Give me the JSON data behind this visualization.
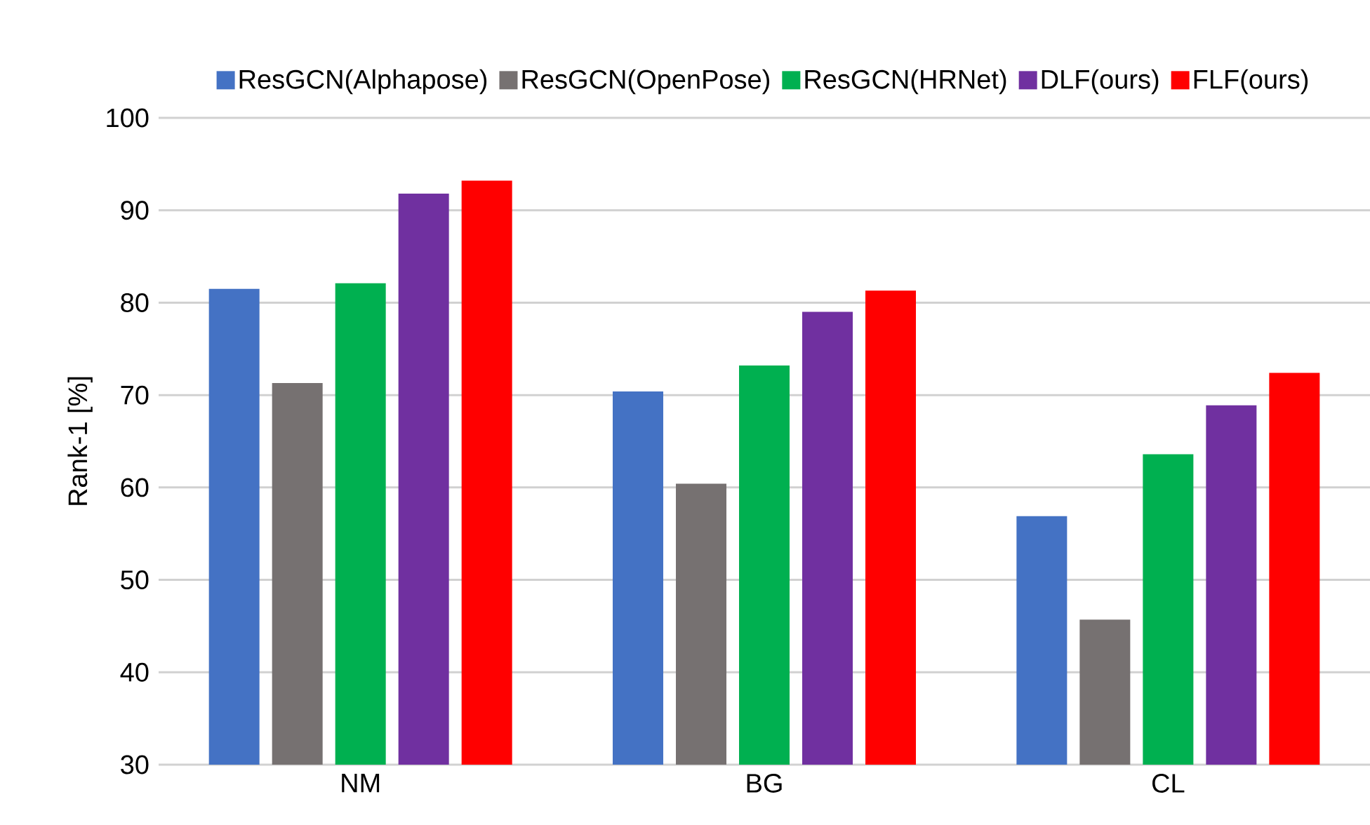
{
  "chart_data": {
    "type": "bar",
    "ylabel": "Rank-1 [%]",
    "categories": [
      "NM",
      "BG",
      "CL"
    ],
    "series": [
      {
        "name": "ResGCN(Alphapose)",
        "color": "#4472c4",
        "values": [
          81.5,
          70.4,
          56.9
        ]
      },
      {
        "name": "ResGCN(OpenPose)",
        "color": "#767171",
        "values": [
          71.3,
          60.4,
          45.7
        ]
      },
      {
        "name": "ResGCN(HRNet)",
        "color": "#00b050",
        "values": [
          82.1,
          73.2,
          63.6
        ]
      },
      {
        "name": "DLF(ours)",
        "color": "#7030a0",
        "values": [
          91.8,
          79.0,
          68.9
        ]
      },
      {
        "name": "FLF(ours)",
        "color": "#ff0000",
        "values": [
          93.2,
          81.3,
          72.4
        ]
      }
    ],
    "ylim": [
      30,
      100
    ],
    "yticks": [
      30,
      40,
      50,
      60,
      70,
      80,
      90,
      100
    ],
    "grid": "y",
    "legend": "top"
  }
}
